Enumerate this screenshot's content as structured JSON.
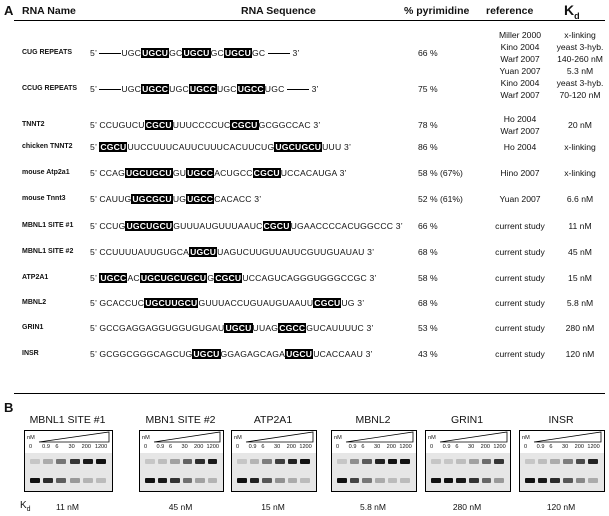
{
  "panel_a": {
    "label": "A",
    "headers": {
      "name": "RNA Name",
      "sequence": "RNA Sequence",
      "pyrimidine": "% pyrimidine",
      "reference": "reference",
      "kd_main": "K",
      "kd_sub": "d"
    },
    "rows": [
      {
        "name": "CUG REPEATS",
        "seq": [
          [
            "t",
            "5’ "
          ],
          [
            "l",
            ""
          ],
          [
            "t",
            "UGC"
          ],
          [
            "h",
            "UGCU"
          ],
          [
            "t",
            "GC"
          ],
          [
            "h",
            "UGCU"
          ],
          [
            "t",
            "GC"
          ],
          [
            "h",
            "UGCU"
          ],
          [
            "t",
            "GC "
          ],
          [
            "l",
            ""
          ],
          [
            "t",
            " 3’"
          ]
        ],
        "pct": "66 %",
        "refs": [
          "Miller 2000",
          "Kino 2004",
          "Warf 2007",
          "Yuan 2007"
        ],
        "kds": [
          "x-linking",
          "yeast 3-hyb.",
          "140-260 nM",
          "5.3 nM"
        ]
      },
      {
        "name": "CCUG REPEATS",
        "seq": [
          [
            "t",
            "5’ "
          ],
          [
            "l",
            ""
          ],
          [
            "t",
            "UGC"
          ],
          [
            "h",
            "UGCC"
          ],
          [
            "t",
            "UGC"
          ],
          [
            "h",
            "UGCC"
          ],
          [
            "t",
            "UGC"
          ],
          [
            "h",
            "UGCC"
          ],
          [
            "t",
            "UGC "
          ],
          [
            "l",
            ""
          ],
          [
            "t",
            " 3’"
          ]
        ],
        "pct": "75 %",
        "refs": [
          "Kino 2004",
          "Warf 2007"
        ],
        "kds": [
          "yeast 3-hyb.",
          "70-120 nM"
        ]
      },
      {
        "name": "TNNT2",
        "seq": [
          [
            "t",
            "5’  CCUGUCU"
          ],
          [
            "h",
            "CGCU"
          ],
          [
            "t",
            "UUUCCCCUC"
          ],
          [
            "h",
            "CGCU"
          ],
          [
            "t",
            "GCGGCCAC  3’"
          ]
        ],
        "pct": "78 %",
        "refs": [
          "Ho 2004",
          "Warf 2007"
        ],
        "kds": [
          "20  nM"
        ]
      },
      {
        "name": "chicken TNNT2",
        "seq": [
          [
            "t",
            "5’ "
          ],
          [
            "h",
            "CGCU"
          ],
          [
            "t",
            "UUCCUUUCAUUCUUUCACUUCUG"
          ],
          [
            "h",
            "UGCUGCU"
          ],
          [
            "t",
            "UUU  3’"
          ]
        ],
        "pct": "86 %",
        "refs": [
          "Ho 2004"
        ],
        "kds": [
          "x-linking"
        ]
      },
      {
        "name": "mouse Atp2a1",
        "seq": [
          [
            "t",
            "5’  CCAG"
          ],
          [
            "h",
            "UGCUGCU"
          ],
          [
            "t",
            "GU"
          ],
          [
            "h",
            "UGCC"
          ],
          [
            "t",
            "ACUGCC"
          ],
          [
            "h",
            "CGCU"
          ],
          [
            "t",
            "UCCACAUGA  3’"
          ]
        ],
        "pct": "58 % (67%)",
        "refs": [
          "Hino 2007"
        ],
        "kds": [
          "x-linking"
        ]
      },
      {
        "name": "mouse Tnnt3",
        "seq": [
          [
            "t",
            "5’  CAUUG"
          ],
          [
            "h",
            "UGCGCU"
          ],
          [
            "t",
            "UG"
          ],
          [
            "h",
            "UGCC"
          ],
          [
            "t",
            "CACACC  3’"
          ]
        ],
        "pct": "52 % (61%)",
        "refs": [
          "Yuan 2007"
        ],
        "kds": [
          "6.6 nM"
        ]
      },
      {
        "name": "MBNL1 SITE #1",
        "seq": [
          [
            "t",
            "5’  CCUG"
          ],
          [
            "h",
            "UGCUGCU"
          ],
          [
            "t",
            "GUUUAUGUUUAAUC"
          ],
          [
            "h",
            "CGCU"
          ],
          [
            "t",
            "UGAACCCCACUGGCCC  3’"
          ]
        ],
        "pct": "66 %",
        "refs": [
          "current study"
        ],
        "kds": [
          "11  nM"
        ]
      },
      {
        "name": "MBNL1 SITE #2",
        "seq": [
          [
            "t",
            "5’  CCUUUUAUUGUGCA"
          ],
          [
            "h",
            "UGCU"
          ],
          [
            "t",
            "UAGUCUUGUUAUUCGUUGUAUAU  3’"
          ]
        ],
        "pct": "68 %",
        "refs": [
          "current study"
        ],
        "kds": [
          "45  nM"
        ]
      },
      {
        "name": "ATP2A1",
        "seq": [
          [
            "t",
            "5’ "
          ],
          [
            "h",
            "UGCC"
          ],
          [
            "t",
            "AC"
          ],
          [
            "h",
            "UGCUGCUGCU"
          ],
          [
            "t",
            "G"
          ],
          [
            "h",
            "CGCU"
          ],
          [
            "t",
            "UCCAGUCAGGGUGGGCCGC  3’"
          ]
        ],
        "pct": "58 %",
        "refs": [
          "current study"
        ],
        "kds": [
          "15  nM"
        ]
      },
      {
        "name": "MBNL2",
        "seq": [
          [
            "t",
            "5’  GCACCUC"
          ],
          [
            "h",
            "UGCUUGCU"
          ],
          [
            "t",
            "GUUUACCUGUAUGUAAUU"
          ],
          [
            "h",
            "CGCU"
          ],
          [
            "t",
            "UG  3’"
          ]
        ],
        "pct": "68 %",
        "refs": [
          "current study"
        ],
        "kds": [
          "5.8  nM"
        ]
      },
      {
        "name": "GRIN1",
        "seq": [
          [
            "t",
            "5’  GCCGAGGAGGUGGUGUGAU"
          ],
          [
            "h",
            "UGCU"
          ],
          [
            "t",
            "UUAG"
          ],
          [
            "h",
            "CGCC"
          ],
          [
            "t",
            "GUCAUUUUC  3’"
          ]
        ],
        "pct": "53 %",
        "refs": [
          "current study"
        ],
        "kds": [
          "280  nM"
        ]
      },
      {
        "name": "INSR",
        "seq": [
          [
            "t",
            "5’  GCGGCGGGCAGCUG"
          ],
          [
            "h",
            "UGCU"
          ],
          [
            "t",
            "GGAGAGCAGA"
          ],
          [
            "h",
            "UGCU"
          ],
          [
            "t",
            "UCACCAAU  3’"
          ]
        ],
        "pct": "43 %",
        "refs": [
          "current study"
        ],
        "kds": [
          "120  nM"
        ]
      }
    ]
  },
  "panel_b": {
    "label": "B",
    "conc_unit": "nM",
    "concentrations": [
      "0",
      "0.9",
      "6",
      "30",
      "200",
      "1200"
    ],
    "kd_main": "K",
    "kd_sub": "d",
    "gels": [
      {
        "title": "MBNL1 SITE #1",
        "kd": "11 nM"
      },
      {
        "title": "MBN1 SITE #2",
        "kd": "45 nM"
      },
      {
        "title": "ATP2A1",
        "kd": "15 nM"
      },
      {
        "title": "MBNL2",
        "kd": "5.8 nM"
      },
      {
        "title": "GRIN1",
        "kd": "280 nM"
      },
      {
        "title": "INSR",
        "kd": "120 nM"
      }
    ]
  }
}
